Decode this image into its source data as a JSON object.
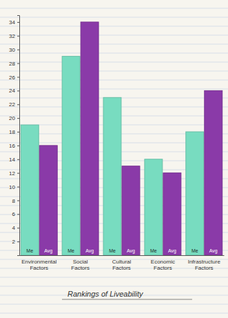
{
  "chart_data": {
    "type": "bar",
    "title": "Rankings of Liveability",
    "categories": [
      "Environmental Factors",
      "Social Factors",
      "Cultural Factors",
      "Economic Factors",
      "Infrastructure Factors"
    ],
    "series": [
      {
        "name": "Me",
        "color": "#78dcc0",
        "values": [
          19,
          29,
          23,
          14,
          18
        ]
      },
      {
        "name": "Avg",
        "color": "#8a3aa8",
        "values": [
          16,
          34,
          13,
          12,
          24
        ]
      }
    ],
    "ylim": [
      0,
      35
    ],
    "yticks": [
      2,
      4,
      6,
      8,
      10,
      12,
      14,
      16,
      18,
      20,
      22,
      24,
      26,
      28,
      30,
      32,
      34
    ],
    "grid": false
  }
}
